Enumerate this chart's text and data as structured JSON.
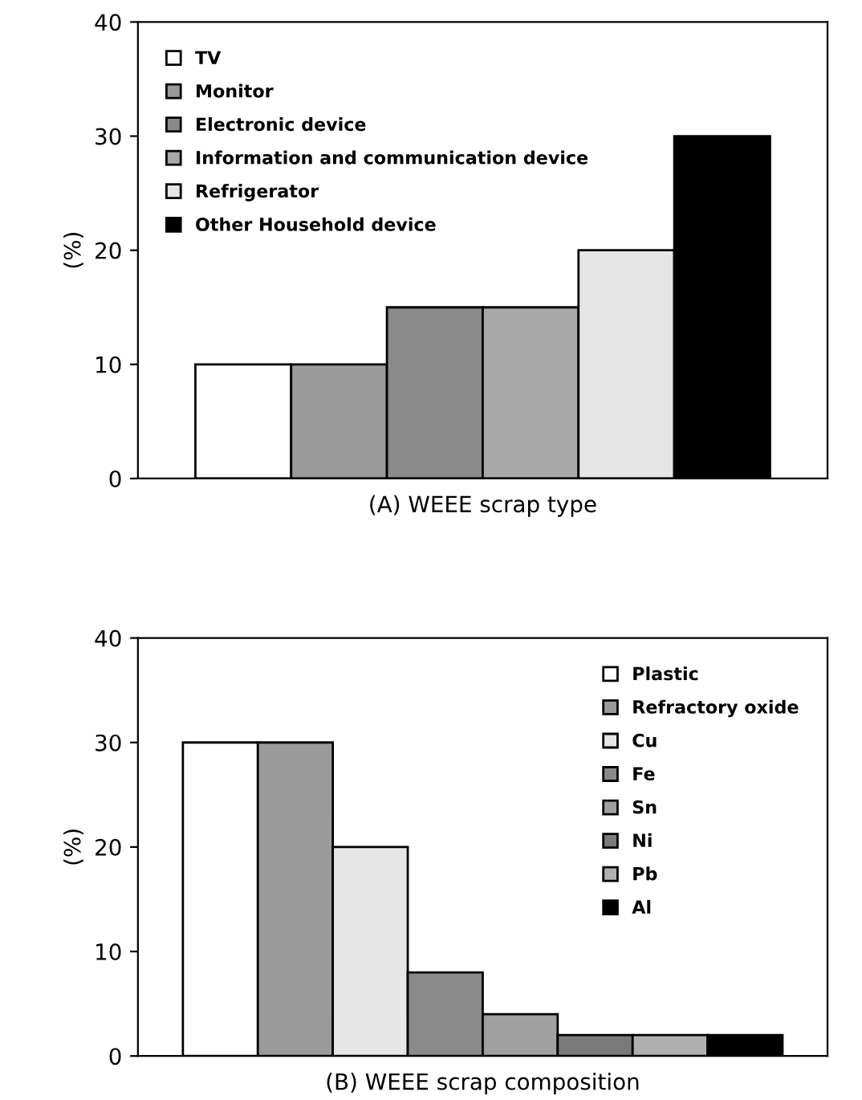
{
  "chart_data": [
    {
      "type": "bar",
      "xlabel": "(A) WEEE scrap type",
      "ylabel": "(%)",
      "categories": [
        null,
        null,
        null,
        null,
        null,
        null
      ],
      "ylim": [
        0,
        40
      ],
      "yticks": [
        0,
        10,
        20,
        30,
        40
      ],
      "legend": "top left",
      "series": [
        {
          "name": "TV",
          "color": "#ffffff",
          "values": [
            10,
            null,
            null,
            null,
            null,
            null
          ]
        },
        {
          "name": "Monitor",
          "color": "#9a9a9a",
          "values": [
            null,
            10,
            null,
            null,
            null,
            null
          ]
        },
        {
          "name": "Electronic device",
          "color": "#8a8a8a",
          "values": [
            null,
            null,
            15,
            null,
            null,
            null
          ]
        },
        {
          "name": "Information and communication device",
          "color": "#a8a8a8",
          "values": [
            null,
            null,
            null,
            15,
            null,
            null
          ]
        },
        {
          "name": "Refrigerator",
          "color": "#e6e6e6",
          "values": [
            null,
            null,
            null,
            null,
            20,
            null
          ]
        },
        {
          "name": "Other Household device",
          "color": "#000000",
          "values": [
            null,
            null,
            null,
            null,
            null,
            30
          ]
        }
      ]
    },
    {
      "type": "bar",
      "xlabel": "(B) WEEE scrap composition",
      "ylabel": "(%)",
      "categories": [
        null,
        null,
        null,
        null,
        null,
        null,
        null,
        null
      ],
      "ylim": [
        0,
        40
      ],
      "yticks": [
        0,
        10,
        20,
        30,
        40
      ],
      "legend": "top right",
      "series": [
        {
          "name": "Plastic",
          "color": "#ffffff",
          "values": [
            30,
            null,
            null,
            null,
            null,
            null,
            null,
            null
          ]
        },
        {
          "name": "Refractory oxide",
          "color": "#9a9a9a",
          "values": [
            null,
            30,
            null,
            null,
            null,
            null,
            null,
            null
          ]
        },
        {
          "name": "Cu",
          "color": "#e6e6e6",
          "values": [
            null,
            null,
            20,
            null,
            null,
            null,
            null,
            null
          ]
        },
        {
          "name": "Fe",
          "color": "#8a8a8a",
          "values": [
            null,
            null,
            null,
            8,
            null,
            null,
            null,
            null
          ]
        },
        {
          "name": "Sn",
          "color": "#a0a0a0",
          "values": [
            null,
            null,
            null,
            null,
            4,
            null,
            null,
            null
          ]
        },
        {
          "name": "Ni",
          "color": "#7a7a7a",
          "values": [
            null,
            null,
            null,
            null,
            null,
            2,
            null,
            null
          ]
        },
        {
          "name": "Pb",
          "color": "#b0b0b0",
          "values": [
            null,
            null,
            null,
            null,
            null,
            null,
            2,
            null
          ]
        },
        {
          "name": "Al",
          "color": "#000000",
          "values": [
            null,
            null,
            null,
            null,
            null,
            null,
            null,
            2
          ]
        }
      ]
    }
  ]
}
